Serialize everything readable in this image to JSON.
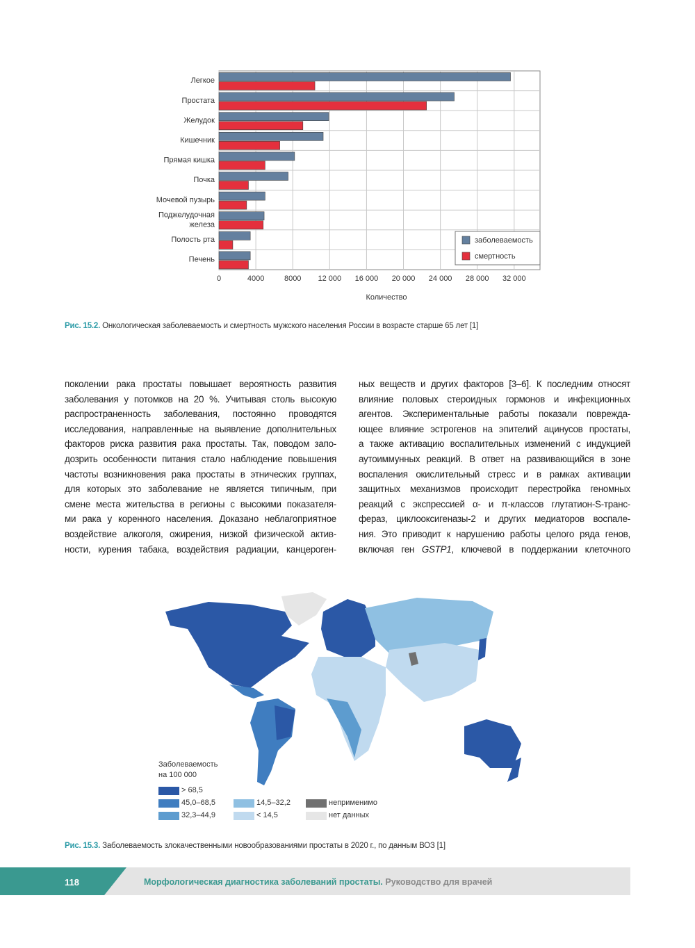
{
  "chart_data": {
    "type": "bar",
    "orientation": "horizontal",
    "categories": [
      "Легкое",
      "Простата",
      "Желудок",
      "Кишечник",
      "Прямая кишка",
      "Почка",
      "Мочевой пузырь",
      "Поджелудочная железа",
      "Полость рта",
      "Печень"
    ],
    "series": [
      {
        "name": "заболеваемость",
        "color": "#64809f",
        "values": [
          31600,
          25500,
          11900,
          11300,
          8200,
          7500,
          5000,
          4900,
          3400,
          3400
        ]
      },
      {
        "name": "смертность",
        "color": "#e4303d",
        "values": [
          10400,
          22500,
          9100,
          6600,
          5000,
          3200,
          3000,
          4800,
          1500,
          3200
        ]
      }
    ],
    "xlabel": "Количество",
    "xlim": [
      0,
      34800
    ],
    "xticks": [
      0,
      4000,
      8000,
      {
        "value": 12000,
        "label": "12 000"
      },
      {
        "value": 16000,
        "label": "16 000"
      },
      {
        "value": 20000,
        "label": "20 000"
      },
      {
        "value": 24000,
        "label": "24 000"
      },
      {
        "value": 28000,
        "label": "28 000"
      },
      {
        "value": 32000,
        "label": "32 000"
      }
    ],
    "grid": true,
    "legend": "lower right"
  },
  "figure1_caption": {
    "label": "Рис. 15.2.",
    "text": "Онкологическая заболеваемость и смертность мужского населения России в возрасте старше 65 лет [1]"
  },
  "body": {
    "columns": [
      [
        "поколении рака простаты повышает вероятность развития",
        "заболевания у потомков на 20 %. Учитывая столь высокую",
        "распространенность заболевания, постоянно проводятся",
        "исследования, направленные на выявление дополнительных",
        "факторов риска развития рака простаты. Так, поводом запо-",
        "дозрить особенности питания стало наблюдение повышения",
        "частоты возникновения рака простаты в этнических группах,",
        "для которых это заболевание не является типичным, при",
        "смене места жительства в регионы с высокими показателя-",
        "ми рака у коренного населения. Доказано неблагоприятное",
        "воздействие алкоголя, ожирения, низкой физической актив-",
        "ности, курения табака, воздействия радиации, канцероген-"
      ],
      [
        "ных веществ и других факторов [3–6]. К последним относят",
        "влияние половых стероидных гормонов и инфекционных",
        "агентов. Экспериментальные работы показали поврежда-",
        "ющее влияние эстрогенов на эпителий ацинусов простаты,",
        "а также активацию воспалительных изменений с индукцией",
        "аутоиммунных реакций. В ответ на развивающийся в зоне",
        "воспаления окислительный стресс и в рамках активации",
        "защитных механизмов происходит перестройка геномных",
        "реакций с экспрессией α- и π-классов глутатион-S-транс-",
        "фераз, циклооксигеназы-2 и других медиаторов воспале-",
        "ния. Это приводит к нарушению работы целого ряда генов,",
        [
          "включая ген ",
          "GSTP1",
          ", ключевой в поддержании клеточного"
        ]
      ]
    ]
  },
  "map": {
    "legend_title": [
      "Заболеваемость",
      "на 100 000"
    ],
    "legend": [
      {
        "label": "> 68,5",
        "color": "#2b58a6"
      },
      {
        "label": "45,0–68,5",
        "color": "#3f7dc0"
      },
      {
        "label": "32,3–44,9",
        "color": "#5d9ccf"
      },
      {
        "label": "14,5–32,2",
        "color": "#8fc0e2"
      },
      {
        "label": "< 14,5",
        "color": "#c0daef"
      },
      {
        "label": "неприменимо",
        "color": "#707070"
      },
      {
        "label": "нет данных",
        "color": "#e6e6e6"
      }
    ]
  },
  "figure2_caption": {
    "label": "Рис. 15.3.",
    "text": "Заболеваемость злокачественными новообразованиями простаты в 2020 г., по данным ВОЗ [1]"
  },
  "footer": {
    "page": "118",
    "title": "Морфологическая диагностика заболеваний простаты.",
    "subtitle": " Руководство для врачей"
  }
}
